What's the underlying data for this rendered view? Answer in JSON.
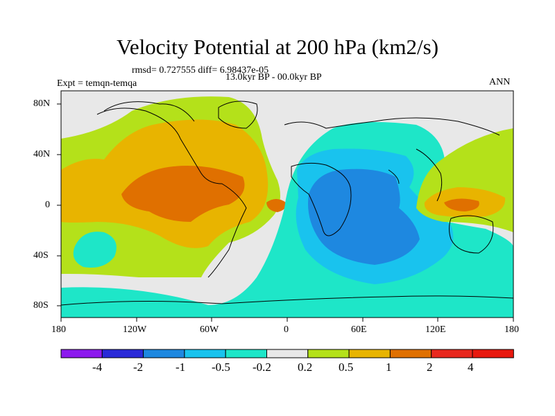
{
  "title": "Velocity Potential at 200 hPa (km2/s)",
  "stats": "rmsd= 0.727555 diff= 6.98437e-05",
  "experiment": "Expt = temqn-temqa",
  "period": "13.0kyr BP - 00.0kyr BP",
  "season": "ANN",
  "lat_ticks": [
    "80N",
    "40N",
    "0",
    "40S",
    "80S"
  ],
  "lon_ticks": [
    "180",
    "120W",
    "60W",
    "0",
    "60E",
    "120E",
    "180"
  ],
  "colorbar": {
    "labels": [
      "-4",
      "-2",
      "-1",
      "-0.5",
      "-0.2",
      "0.2",
      "0.5",
      "1",
      "2",
      "4"
    ],
    "colors": [
      "#8c1aee",
      "#2a2ad8",
      "#1e88e0",
      "#19c3ee",
      "#1ee6c8",
      "#e8e8e8",
      "#b4e11a",
      "#e8b400",
      "#e07000",
      "#e8281e",
      "#e8190f"
    ]
  },
  "field_colors": {
    "bg": "#e8e8e8",
    "lime": "#b4e11a",
    "gold": "#e8b400",
    "orange": "#e07000",
    "teal": "#1ee6c8",
    "cyan": "#19c3ee",
    "blue": "#1e88e0"
  }
}
